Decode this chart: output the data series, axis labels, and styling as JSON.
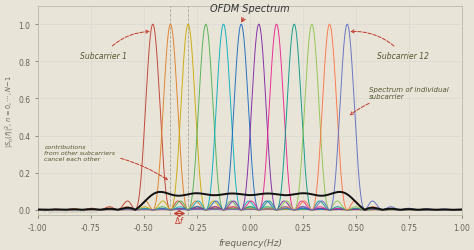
{
  "title": "OFDM Spectrum",
  "xlabel": "frequency(Hz)",
  "bg_color": "#e8e4d8",
  "xlim": [
    -1.0,
    1.0
  ],
  "ylim": [
    -0.03,
    1.1
  ],
  "N": 12,
  "subcarrier_colors": [
    "#c0392b",
    "#e07b20",
    "#c9a800",
    "#4caf50",
    "#00acc1",
    "#1565c0",
    "#7b1fa2",
    "#e91e8c",
    "#009688",
    "#8bc34a",
    "#ff7043",
    "#5c6bc0"
  ],
  "ofdm_color": "#111111",
  "annot_color": "#c0392b",
  "grid_color": "#cccccc",
  "tick_label_color": "#666655",
  "title_color": "#333333",
  "axis_label_color": "#666655"
}
